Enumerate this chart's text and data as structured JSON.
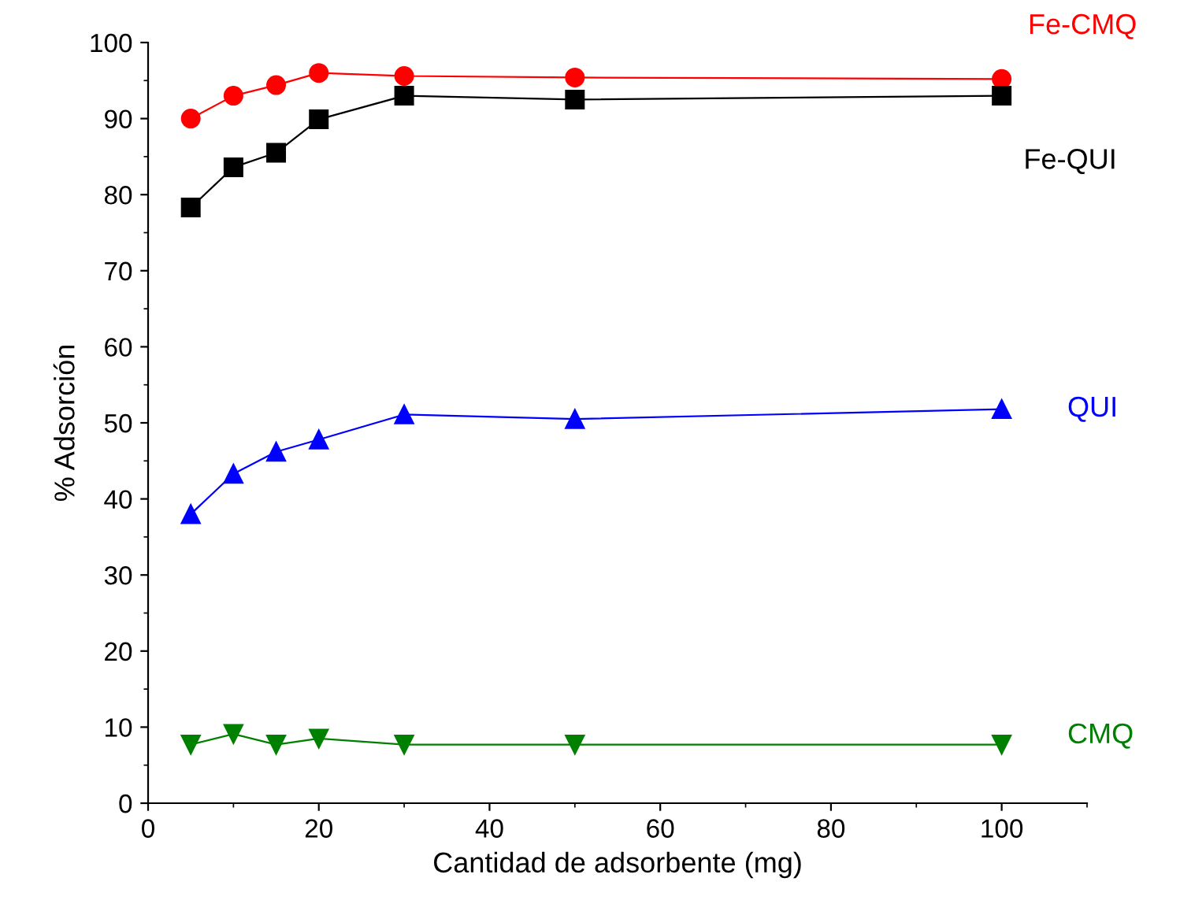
{
  "chart_data": {
    "type": "line",
    "xlabel": "Cantidad de adsorbente (mg)",
    "ylabel": "% Adsorción",
    "xlim": [
      0,
      110
    ],
    "xticks": [
      0,
      20,
      40,
      60,
      80,
      100
    ],
    "ylim": [
      0,
      100
    ],
    "yticks": [
      0,
      10,
      20,
      30,
      40,
      50,
      60,
      70,
      80,
      90,
      100
    ],
    "grid": false,
    "legend": false,
    "line_style": "solid",
    "x": [
      5,
      10,
      15,
      20,
      30,
      50,
      100
    ],
    "series": [
      {
        "name": "Fe-CMQ",
        "color": "#ff0000",
        "marker": "circle",
        "values": [
          90.0,
          93.0,
          94.4,
          96.0,
          95.6,
          95.4,
          95.2
        ]
      },
      {
        "name": "Fe-QUI",
        "color": "#000000",
        "marker": "square",
        "values": [
          78.3,
          83.6,
          85.5,
          89.9,
          93.0,
          92.5,
          93.0
        ]
      },
      {
        "name": "QUI",
        "color": "#0000ff",
        "marker": "triangle",
        "values": [
          38.0,
          43.3,
          46.2,
          47.8,
          51.1,
          50.5,
          51.8
        ]
      },
      {
        "name": "CMQ",
        "color": "#008000",
        "marker": "triangle_down",
        "values": [
          7.7,
          9.1,
          7.7,
          8.5,
          7.7,
          7.7,
          7.7
        ]
      }
    ]
  }
}
